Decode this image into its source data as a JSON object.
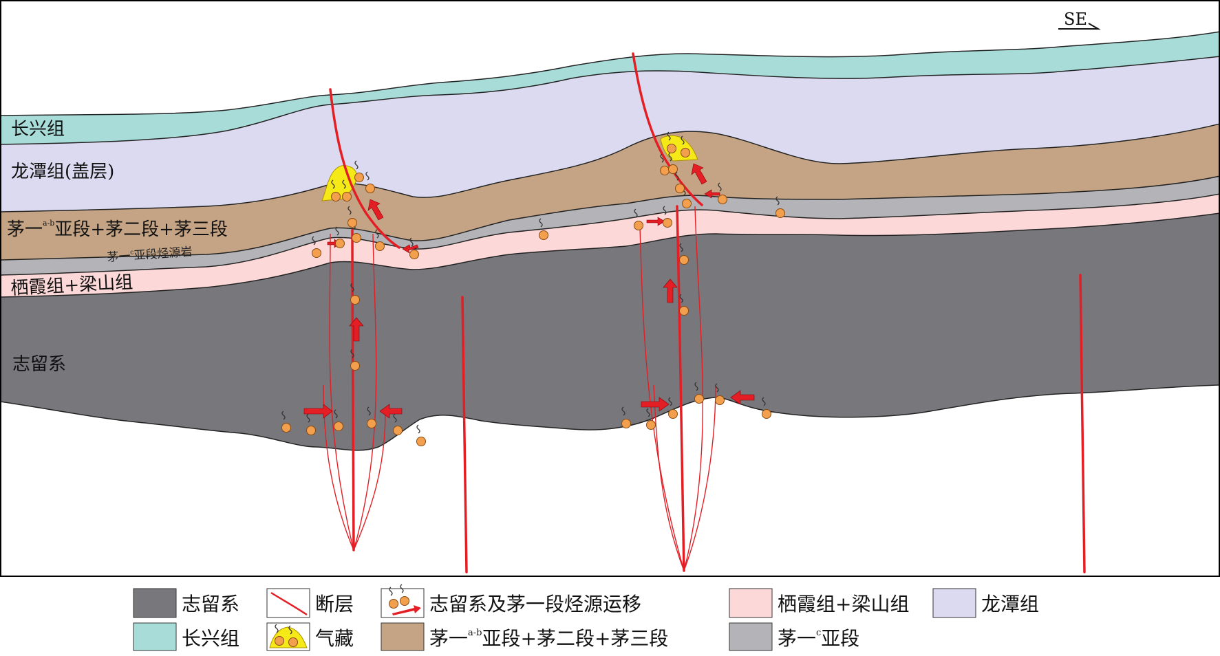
{
  "diagram": {
    "direction_label": "SE",
    "layer_labels": {
      "changxing": "长兴组",
      "longtan": "龙潭组(盖层)",
      "mao_upper_prefix": "茅一",
      "mao_upper_sup": "a-b",
      "mao_upper_suffix": "亚段+茅二段+茅三段",
      "mao_c_source": "茅一",
      "mao_c_sup": "c",
      "mao_c_suffix": "亚段烃源岩",
      "qixia": "栖霞组+梁山组",
      "silurian": "志留系"
    },
    "colors": {
      "changxing": "#a8dcd9",
      "longtan": "#dcdaf0",
      "mao_upper": "#c4a484",
      "mao_c": "#b4b4b8",
      "qixia": "#fcd8d8",
      "silurian": "#78777c",
      "fault": "#e31e24",
      "gas": "#f5ea18",
      "hydrocarbon": "#f3a04e"
    }
  },
  "legend": {
    "row1": [
      {
        "swatch": "silurian",
        "label": "志留系"
      },
      {
        "swatch": "fault-icon",
        "label": "断层"
      },
      {
        "swatch": "migration-icon",
        "label": "志留系及茅一段烃源运移"
      },
      {
        "swatch": "qixia",
        "label": "栖霞组+梁山组"
      },
      {
        "swatch": "longtan",
        "label": "龙潭组"
      }
    ],
    "row2": [
      {
        "swatch": "changxing",
        "label": "长兴组"
      },
      {
        "swatch": "gas-icon",
        "label": "气藏"
      },
      {
        "swatch": "mao_upper",
        "label_prefix": "茅一",
        "label_sup": "a-b",
        "label_suffix": "亚段+茅二段+茅三段"
      },
      {
        "swatch": "mao_c",
        "label_prefix": "茅一",
        "label_sup": "c",
        "label_suffix": "亚段"
      }
    ]
  }
}
